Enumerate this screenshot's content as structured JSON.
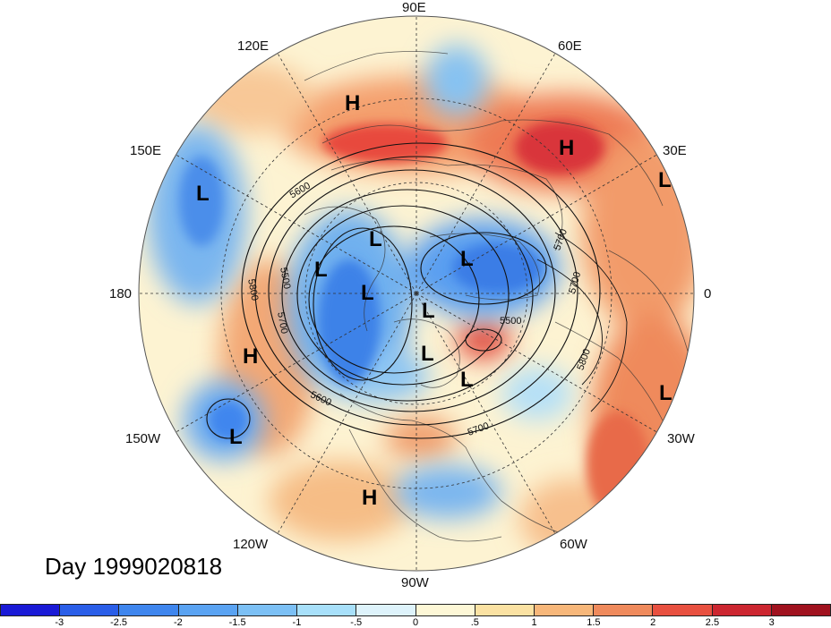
{
  "map": {
    "longitude_labels": {
      "lon_90e": "90E",
      "lon_60e": "60E",
      "lon_30e": "30E",
      "lon_0": "0",
      "lon_30w": "30W",
      "lon_60w": "60W",
      "lon_90w": "90W",
      "lon_120w": "120W",
      "lon_150w": "150W",
      "lon_180": "180",
      "lon_150e": "150E",
      "lon_120e": "120E"
    },
    "contour_labels": {
      "c5600_top": "5600",
      "c5500_left": "5500",
      "c5800_left": "5800",
      "c5700_left": "5700",
      "c5600_bottom": "5600",
      "c5700_bottom": "5700",
      "c5500_right": "5500",
      "c5800_right": "5800",
      "c5700_right_top": "5700",
      "c5700_right_mid": "5700"
    },
    "pressure_centers": {
      "h_siberia": "H",
      "h_europe": "H",
      "l_30e": "L",
      "l_150e": "L",
      "l_arctic_a": "L",
      "l_arctic_b": "L",
      "l_canada_a": "L",
      "l_barents": "L",
      "l_greenland_a": "L",
      "l_greenland_b": "L",
      "l_labrador": "L",
      "h_pacific": "H",
      "l_pacific": "L",
      "h_mexico": "H",
      "l_atlantic": "L"
    },
    "day_label": "Day 1999020818"
  },
  "colorbar": {
    "ticks": [
      "-3",
      "-2.5",
      "-2",
      "-1.5",
      "-1",
      "-.5",
      "0",
      ".5",
      "1",
      "1.5",
      "2",
      "2.5",
      "3"
    ],
    "colors": [
      "#1a1ad6",
      "#2a5ee8",
      "#3f86ee",
      "#5aa3f2",
      "#7cc0f5",
      "#a8e0fa",
      "#def3fb",
      "#fdf7d6",
      "#fbe2a3",
      "#f7b77a",
      "#ef8a5c",
      "#e85040",
      "#cc2630",
      "#a0121f"
    ]
  }
}
